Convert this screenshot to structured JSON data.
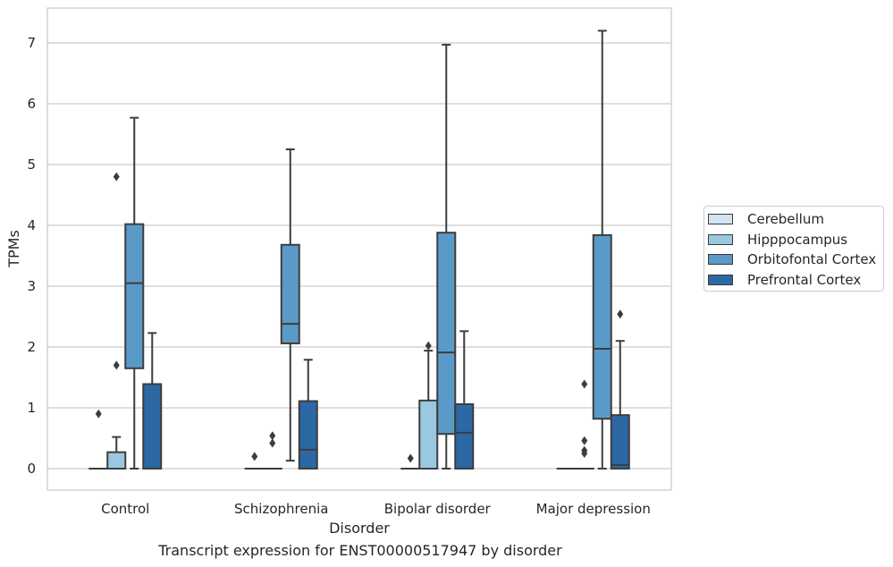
{
  "chart_data": {
    "type": "box",
    "xlabel": "Disorder",
    "ylabel": "TPMs",
    "caption": "Transcript expression for ENST00000517947 by disorder",
    "ylim": [
      -0.35,
      7.6
    ],
    "yticks": [
      0,
      1,
      2,
      3,
      4,
      5,
      6,
      7
    ],
    "grid": "horizontal",
    "legend_position": "right",
    "categories": [
      "Control",
      "Schizophrenia",
      "Bipolar disorder",
      "Major depression"
    ],
    "series": [
      {
        "name": "Cerebellum",
        "color": "#d2e3f3",
        "boxes": [
          {
            "q1": 0,
            "median": 0,
            "q3": 0,
            "whislo": 0,
            "whishi": 0,
            "fliers": [
              0.9
            ]
          },
          {
            "q1": 0,
            "median": 0,
            "q3": 0,
            "whislo": 0,
            "whishi": 0,
            "fliers": [
              0.2
            ]
          },
          {
            "q1": 0,
            "median": 0,
            "q3": 0,
            "whislo": 0,
            "whishi": 0,
            "fliers": [
              0.17
            ]
          },
          {
            "q1": 0,
            "median": 0,
            "q3": 0,
            "whislo": 0,
            "whishi": 0,
            "fliers": []
          }
        ]
      },
      {
        "name": "Hipppocampus",
        "color": "#9ac8e0",
        "boxes": [
          {
            "q1": 0,
            "median": 0,
            "q3": 0.27,
            "whislo": 0,
            "whishi": 0.52,
            "fliers": [
              1.7,
              4.8
            ]
          },
          {
            "q1": 0,
            "median": 0,
            "q3": 0,
            "whislo": 0,
            "whishi": 0,
            "fliers": [
              0.42,
              0.54
            ]
          },
          {
            "q1": 0,
            "median": 0,
            "q3": 1.12,
            "whislo": 0,
            "whishi": 1.94,
            "fliers": [
              2.02
            ]
          },
          {
            "q1": 0,
            "median": 0,
            "q3": 0,
            "whislo": 0,
            "whishi": 0,
            "fliers": [
              1.39,
              0.46,
              0.3,
              0.25
            ]
          }
        ]
      },
      {
        "name": "Orbitofontal Cortex",
        "color": "#5a9ac8",
        "boxes": [
          {
            "q1": 1.65,
            "median": 3.05,
            "q3": 4.02,
            "whislo": 0,
            "whishi": 5.77,
            "fliers": []
          },
          {
            "q1": 2.06,
            "median": 2.38,
            "q3": 3.68,
            "whislo": 0.13,
            "whishi": 5.25,
            "fliers": []
          },
          {
            "q1": 0.57,
            "median": 1.91,
            "q3": 3.88,
            "whislo": 0,
            "whishi": 6.97,
            "fliers": []
          },
          {
            "q1": 0.82,
            "median": 1.97,
            "q3": 3.84,
            "whislo": 0,
            "whishi": 7.2,
            "fliers": []
          }
        ]
      },
      {
        "name": "Prefrontal Cortex",
        "color": "#2c68a3",
        "boxes": [
          {
            "q1": 0,
            "median": 0,
            "q3": 1.39,
            "whislo": 0,
            "whishi": 2.23,
            "fliers": []
          },
          {
            "q1": 0,
            "median": 0.31,
            "q3": 1.11,
            "whislo": 0,
            "whishi": 1.79,
            "fliers": []
          },
          {
            "q1": 0,
            "median": 0.59,
            "q3": 1.06,
            "whislo": 0,
            "whishi": 2.26,
            "fliers": []
          },
          {
            "q1": 0,
            "median": 0.06,
            "q3": 0.88,
            "whislo": 0,
            "whishi": 2.1,
            "fliers": [
              2.54
            ]
          }
        ]
      }
    ]
  }
}
